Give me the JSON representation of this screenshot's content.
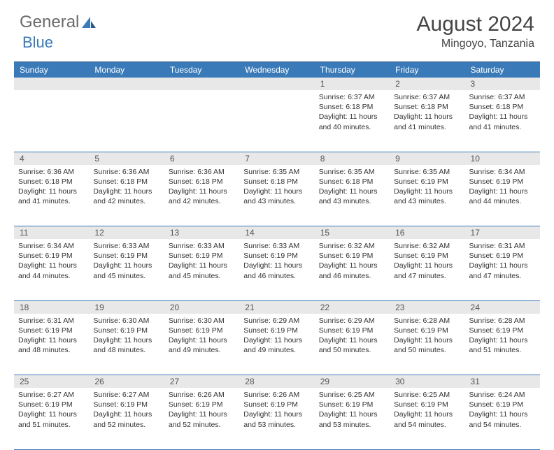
{
  "logo": {
    "text1": "General",
    "text2": "Blue"
  },
  "title": "August 2024",
  "location": "Mingoyo, Tanzania",
  "colors": {
    "header_bg": "#3a7ab8",
    "daynum_bg": "#e8e8e8",
    "row_border": "#3a7ab8",
    "text": "#333333"
  },
  "weekdays": [
    "Sunday",
    "Monday",
    "Tuesday",
    "Wednesday",
    "Thursday",
    "Friday",
    "Saturday"
  ],
  "weeks": [
    [
      null,
      null,
      null,
      null,
      {
        "n": "1",
        "sr": "6:37 AM",
        "ss": "6:18 PM",
        "dl": "11 hours and 40 minutes."
      },
      {
        "n": "2",
        "sr": "6:37 AM",
        "ss": "6:18 PM",
        "dl": "11 hours and 41 minutes."
      },
      {
        "n": "3",
        "sr": "6:37 AM",
        "ss": "6:18 PM",
        "dl": "11 hours and 41 minutes."
      }
    ],
    [
      {
        "n": "4",
        "sr": "6:36 AM",
        "ss": "6:18 PM",
        "dl": "11 hours and 41 minutes."
      },
      {
        "n": "5",
        "sr": "6:36 AM",
        "ss": "6:18 PM",
        "dl": "11 hours and 42 minutes."
      },
      {
        "n": "6",
        "sr": "6:36 AM",
        "ss": "6:18 PM",
        "dl": "11 hours and 42 minutes."
      },
      {
        "n": "7",
        "sr": "6:35 AM",
        "ss": "6:18 PM",
        "dl": "11 hours and 43 minutes."
      },
      {
        "n": "8",
        "sr": "6:35 AM",
        "ss": "6:18 PM",
        "dl": "11 hours and 43 minutes."
      },
      {
        "n": "9",
        "sr": "6:35 AM",
        "ss": "6:19 PM",
        "dl": "11 hours and 43 minutes."
      },
      {
        "n": "10",
        "sr": "6:34 AM",
        "ss": "6:19 PM",
        "dl": "11 hours and 44 minutes."
      }
    ],
    [
      {
        "n": "11",
        "sr": "6:34 AM",
        "ss": "6:19 PM",
        "dl": "11 hours and 44 minutes."
      },
      {
        "n": "12",
        "sr": "6:33 AM",
        "ss": "6:19 PM",
        "dl": "11 hours and 45 minutes."
      },
      {
        "n": "13",
        "sr": "6:33 AM",
        "ss": "6:19 PM",
        "dl": "11 hours and 45 minutes."
      },
      {
        "n": "14",
        "sr": "6:33 AM",
        "ss": "6:19 PM",
        "dl": "11 hours and 46 minutes."
      },
      {
        "n": "15",
        "sr": "6:32 AM",
        "ss": "6:19 PM",
        "dl": "11 hours and 46 minutes."
      },
      {
        "n": "16",
        "sr": "6:32 AM",
        "ss": "6:19 PM",
        "dl": "11 hours and 47 minutes."
      },
      {
        "n": "17",
        "sr": "6:31 AM",
        "ss": "6:19 PM",
        "dl": "11 hours and 47 minutes."
      }
    ],
    [
      {
        "n": "18",
        "sr": "6:31 AM",
        "ss": "6:19 PM",
        "dl": "11 hours and 48 minutes."
      },
      {
        "n": "19",
        "sr": "6:30 AM",
        "ss": "6:19 PM",
        "dl": "11 hours and 48 minutes."
      },
      {
        "n": "20",
        "sr": "6:30 AM",
        "ss": "6:19 PM",
        "dl": "11 hours and 49 minutes."
      },
      {
        "n": "21",
        "sr": "6:29 AM",
        "ss": "6:19 PM",
        "dl": "11 hours and 49 minutes."
      },
      {
        "n": "22",
        "sr": "6:29 AM",
        "ss": "6:19 PM",
        "dl": "11 hours and 50 minutes."
      },
      {
        "n": "23",
        "sr": "6:28 AM",
        "ss": "6:19 PM",
        "dl": "11 hours and 50 minutes."
      },
      {
        "n": "24",
        "sr": "6:28 AM",
        "ss": "6:19 PM",
        "dl": "11 hours and 51 minutes."
      }
    ],
    [
      {
        "n": "25",
        "sr": "6:27 AM",
        "ss": "6:19 PM",
        "dl": "11 hours and 51 minutes."
      },
      {
        "n": "26",
        "sr": "6:27 AM",
        "ss": "6:19 PM",
        "dl": "11 hours and 52 minutes."
      },
      {
        "n": "27",
        "sr": "6:26 AM",
        "ss": "6:19 PM",
        "dl": "11 hours and 52 minutes."
      },
      {
        "n": "28",
        "sr": "6:26 AM",
        "ss": "6:19 PM",
        "dl": "11 hours and 53 minutes."
      },
      {
        "n": "29",
        "sr": "6:25 AM",
        "ss": "6:19 PM",
        "dl": "11 hours and 53 minutes."
      },
      {
        "n": "30",
        "sr": "6:25 AM",
        "ss": "6:19 PM",
        "dl": "11 hours and 54 minutes."
      },
      {
        "n": "31",
        "sr": "6:24 AM",
        "ss": "6:19 PM",
        "dl": "11 hours and 54 minutes."
      }
    ]
  ],
  "labels": {
    "sunrise": "Sunrise: ",
    "sunset": "Sunset: ",
    "daylight": "Daylight: "
  }
}
